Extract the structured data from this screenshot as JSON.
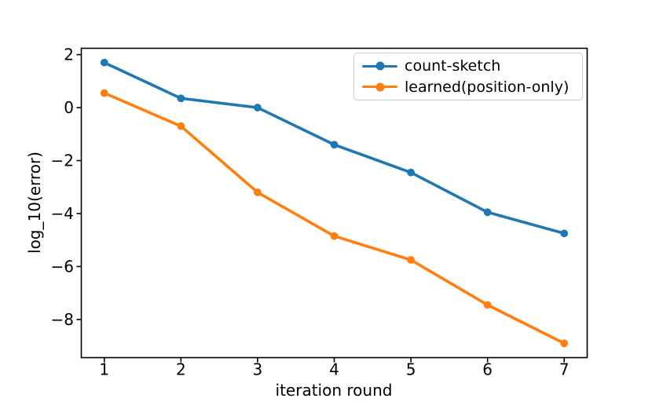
{
  "figure": {
    "background": "#ffffff"
  },
  "chart_data": {
    "type": "line",
    "title": "",
    "xlabel": "iteration round",
    "ylabel": "log_10(error)",
    "x": [
      1,
      2,
      3,
      4,
      5,
      6,
      7
    ],
    "series": [
      {
        "name": "count-sketch",
        "color": "#1f77b4",
        "marker": "circle",
        "values": [
          1.7,
          0.35,
          0.0,
          -1.4,
          -2.45,
          -3.95,
          -4.75
        ]
      },
      {
        "name": "learned(position-only)",
        "color": "#ff7f0e",
        "marker": "circle",
        "values": [
          0.55,
          -0.7,
          -3.2,
          -4.85,
          -5.75,
          -7.45,
          -8.9
        ]
      }
    ],
    "xlim": [
      0.7,
      7.3
    ],
    "ylim": [
      -9.44,
      2.24
    ],
    "xticks": {
      "values": [
        1,
        2,
        3,
        4,
        5,
        6,
        7
      ],
      "labels": [
        "1",
        "2",
        "3",
        "4",
        "5",
        "6",
        "7"
      ]
    },
    "yticks": {
      "values": [
        2,
        0,
        -2,
        -4,
        -6,
        -8
      ],
      "labels": [
        "2",
        "0",
        "−2",
        "−4",
        "−6",
        "−8"
      ]
    },
    "grid": false,
    "legend_position": "upper right",
    "axis_color": "#000000"
  }
}
